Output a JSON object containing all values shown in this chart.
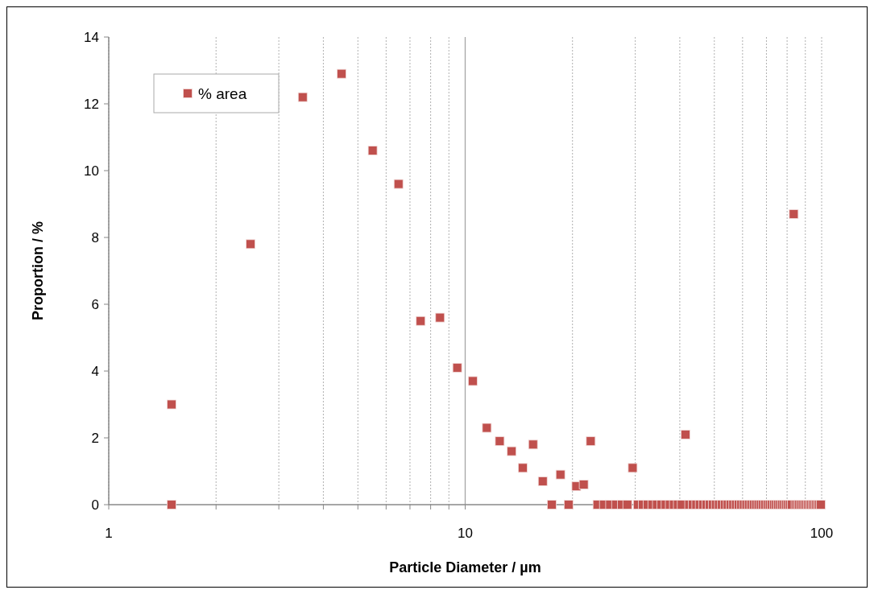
{
  "chart_data": {
    "type": "scatter",
    "xlabel": "Particle Diameter / µm",
    "ylabel": "Proportion / %",
    "log": "x",
    "xlim": [
      1,
      100
    ],
    "ylim": [
      0,
      14
    ],
    "xticks": [
      1,
      {
        "value": 2,
        "label": null
      },
      {
        "value": 3,
        "label": null
      },
      {
        "value": 4,
        "label": null
      },
      {
        "value": 5,
        "label": null
      },
      {
        "value": 6,
        "label": null
      },
      {
        "value": 7,
        "label": null
      },
      {
        "value": 8,
        "label": null
      },
      {
        "value": 9,
        "label": null
      },
      10,
      {
        "value": 20,
        "label": null
      },
      {
        "value": 30,
        "label": null
      },
      {
        "value": 40,
        "label": null
      },
      {
        "value": 50,
        "label": null
      },
      {
        "value": 60,
        "label": null
      },
      {
        "value": 70,
        "label": null
      },
      {
        "value": 80,
        "label": null
      },
      {
        "value": 90,
        "label": null
      },
      100
    ],
    "yticks": [
      0,
      2,
      4,
      6,
      8,
      10,
      12,
      14
    ],
    "grid": "x",
    "ref_lines": [
      {
        "axis": "x",
        "value": 10,
        "color": "#a6a6a6",
        "line_style": "solid"
      }
    ],
    "legend": "top left",
    "marker": "square",
    "series": [
      {
        "name": "% area",
        "color": "#c0504d",
        "x": [
          1.5,
          1.5,
          2.5,
          3.5,
          4.5,
          5.5,
          6.5,
          7.5,
          8.5,
          9.5,
          10.5,
          11.5,
          12.5,
          13.5,
          14.5,
          15.5,
          16.5,
          17.5,
          18.5,
          19.5,
          20.5,
          21.5,
          22.5,
          23.5,
          24.5,
          25.5,
          26.5,
          27.5,
          28.5,
          29.5,
          30.5,
          31.5,
          32.5,
          33.5,
          34.5,
          35.5,
          36.5,
          37.5,
          38.5,
          39.5,
          40.5,
          41.5,
          42.5,
          43.5,
          44.5,
          45.5,
          46.5,
          47.5,
          48.5,
          49.5,
          50.5,
          51.5,
          52.5,
          53.5,
          54.5,
          55.5,
          56.5,
          57.5,
          58.5,
          59.5,
          60.5,
          61.5,
          62.5,
          63.5,
          64.5,
          65.5,
          66.5,
          67.5,
          68.5,
          69.5,
          70.5,
          71.5,
          72.5,
          73.5,
          74.5,
          75.5,
          76.5,
          77.5,
          78.5,
          79.5,
          80.5,
          81.5,
          82.5,
          83.5,
          84.5,
          85.5,
          86.5,
          87.5,
          88.5,
          89.5,
          90.5,
          91.5,
          92.5,
          93.5,
          94.5,
          95.5,
          96.5,
          97.5,
          98.5,
          99.5
        ],
        "values": [
          3.0,
          0,
          7.8,
          12.2,
          12.9,
          10.6,
          9.6,
          5.5,
          5.6,
          4.1,
          3.7,
          2.3,
          1.9,
          1.6,
          1.1,
          1.8,
          0.7,
          0,
          0.9,
          0,
          0.55,
          0.6,
          1.9,
          0,
          0,
          0,
          0,
          0,
          0,
          1.1,
          0,
          0,
          0,
          0,
          0,
          0,
          0,
          0,
          0,
          0,
          0,
          2.1,
          0,
          0,
          0,
          0,
          0,
          0,
          0,
          0,
          0,
          0,
          0,
          0,
          0,
          0,
          0,
          0,
          0,
          0,
          0,
          0,
          0,
          0,
          0,
          0,
          0,
          0,
          0,
          0,
          0,
          0,
          0,
          0,
          0,
          0,
          0,
          0,
          0,
          0,
          0,
          0,
          0,
          8.7,
          0,
          0,
          0,
          0,
          0,
          0,
          0,
          0,
          0,
          0,
          0,
          0,
          0,
          0,
          0,
          0
        ]
      }
    ]
  }
}
